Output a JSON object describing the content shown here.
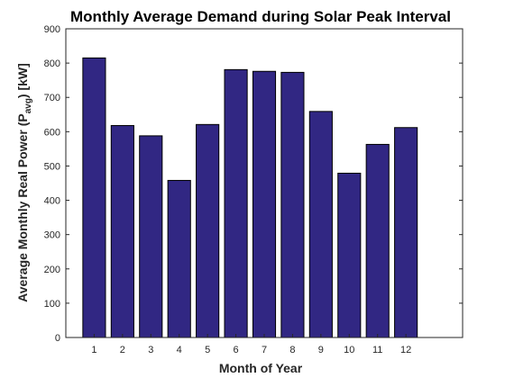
{
  "chart_data": {
    "type": "bar",
    "title": "Monthly Average Demand during Solar Peak Interval",
    "xlabel": "Month of Year",
    "ylabel": {
      "prefix": "Average Monthly Real Power (P",
      "subscript": "avg",
      "suffix": ") [kW]"
    },
    "categories": [
      "1",
      "2",
      "3",
      "4",
      "5",
      "6",
      "7",
      "8",
      "9",
      "10",
      "11",
      "12"
    ],
    "values": [
      815,
      618,
      588,
      458,
      621,
      781,
      776,
      773,
      659,
      479,
      563,
      612
    ],
    "xlim": [
      0,
      14
    ],
    "ylim": [
      0,
      900
    ],
    "yticks": [
      0,
      100,
      200,
      300,
      400,
      500,
      600,
      700,
      800,
      900
    ],
    "grid": false,
    "bar_color": "#312783"
  }
}
